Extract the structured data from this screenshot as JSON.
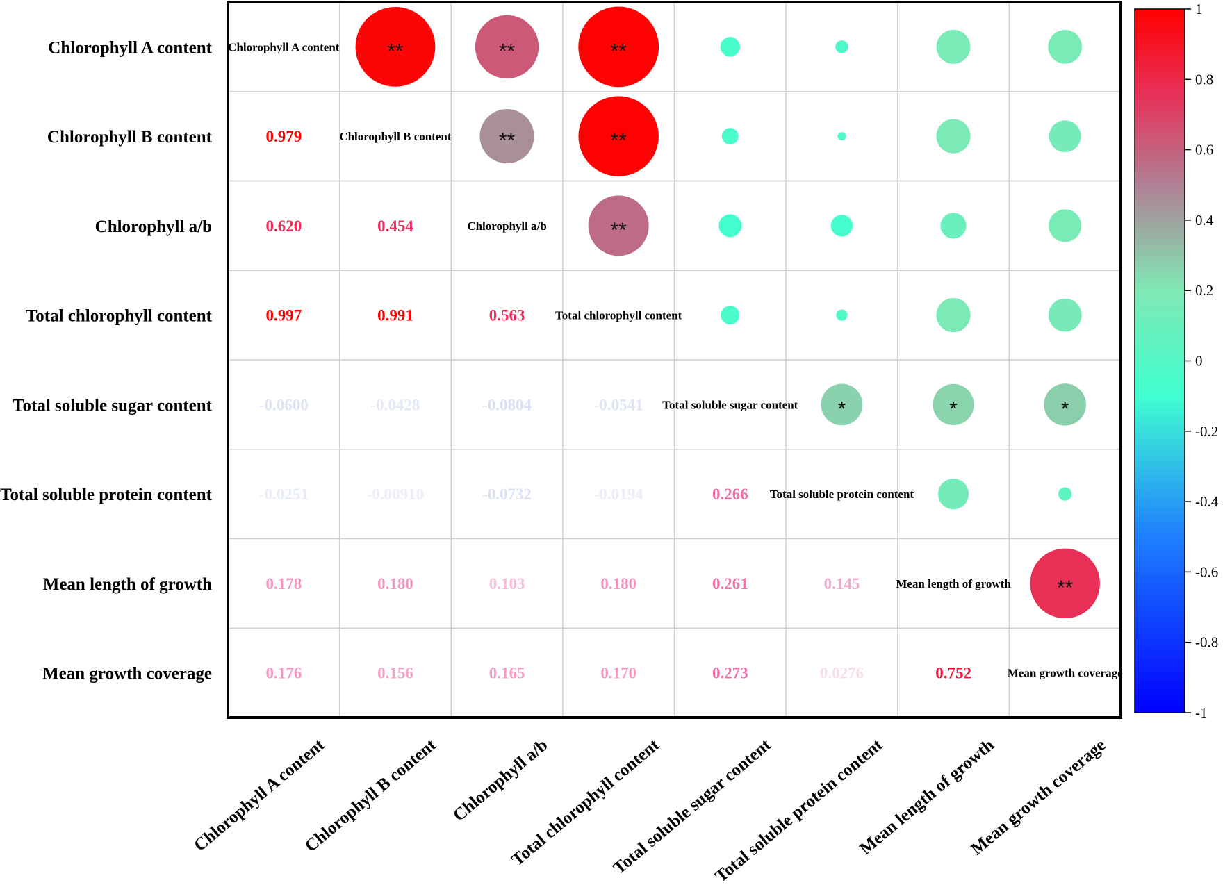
{
  "chart_data": {
    "type": "correlation-matrix",
    "variables": [
      "Chlorophyll A content",
      "Chlorophyll B content",
      "Chlorophyll a/b",
      "Total chlorophyll content",
      "Total soluble sugar content",
      "Total soluble protein content",
      "Mean length of growth",
      "Mean growth coverage"
    ],
    "lower_triangle_labels": [
      [
        null,
        null,
        null,
        null,
        null,
        null,
        null,
        null
      ],
      [
        "0.979",
        null,
        null,
        null,
        null,
        null,
        null,
        null
      ],
      [
        "0.620",
        "0.454",
        null,
        null,
        null,
        null,
        null,
        null
      ],
      [
        "0.997",
        "0.991",
        "0.563",
        null,
        null,
        null,
        null,
        null
      ],
      [
        "-0.0600",
        "-0.0428",
        "-0.0804",
        "-0.0541",
        null,
        null,
        null,
        null
      ],
      [
        "-0.0251",
        "-0.00910",
        "-0.0732",
        "-0.0194",
        "0.266",
        null,
        null,
        null
      ],
      [
        "0.178",
        "0.180",
        "0.103",
        "0.180",
        "0.261",
        "0.145",
        null,
        null
      ],
      [
        "0.176",
        "0.156",
        "0.165",
        "0.170",
        "0.273",
        "0.0276",
        "0.752",
        null
      ]
    ],
    "significance": [
      [
        "",
        "**",
        "**",
        "**",
        "",
        "",
        "",
        ""
      ],
      [
        "",
        "",
        "**",
        "**",
        "",
        "",
        "",
        ""
      ],
      [
        "",
        "",
        "",
        "**",
        "",
        "",
        "",
        ""
      ],
      [
        "",
        "",
        "",
        "",
        "",
        "",
        "",
        ""
      ],
      [
        "",
        "",
        "",
        "",
        "",
        "*",
        "*",
        "*"
      ],
      [
        "",
        "",
        "",
        "",
        "",
        "",
        "",
        ""
      ],
      [
        "",
        "",
        "",
        "",
        "",
        "",
        "",
        "**"
      ],
      [
        "",
        "",
        "",
        "",
        "",
        "",
        "",
        ""
      ]
    ],
    "colorbar": {
      "range": [
        -1,
        1
      ],
      "ticks": [
        "1",
        "0.8",
        "0.6",
        "0.4",
        "0.2",
        "0",
        "-0.2",
        "-0.4",
        "-0.6",
        "-0.8",
        "-1"
      ],
      "colors": [
        "#0000ff",
        "#1e7fff",
        "#40ffd0",
        "#7fe8b4",
        "#d04070",
        "#ff0000"
      ]
    },
    "upper_circle_colors": {
      "strong_positive": "#ff0000",
      "mid": "#c9406c",
      "weak": "#7ff5c4"
    },
    "value_colors": {
      "strong": "#ff0000",
      "moderate": "#e8305a",
      "weak_positive": "#f48fbb",
      "negative": "#d6dcf4"
    }
  }
}
